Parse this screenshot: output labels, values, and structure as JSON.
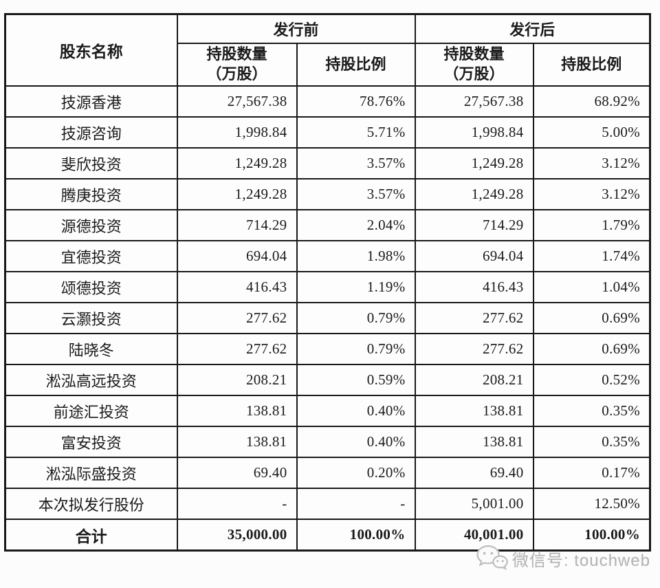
{
  "table": {
    "headers": {
      "shareholder": "股东名称",
      "pre_issue": "发行前",
      "post_issue": "发行后",
      "qty_line1": "持股数量",
      "qty_line2": "（万股）",
      "pct": "持股比例"
    },
    "rows": [
      {
        "name": "技源香港",
        "pre_qty": "27,567.38",
        "pre_pct": "78.76%",
        "post_qty": "27,567.38",
        "post_pct": "68.92%"
      },
      {
        "name": "技源咨询",
        "pre_qty": "1,998.84",
        "pre_pct": "5.71%",
        "post_qty": "1,998.84",
        "post_pct": "5.00%"
      },
      {
        "name": "斐欣投资",
        "pre_qty": "1,249.28",
        "pre_pct": "3.57%",
        "post_qty": "1,249.28",
        "post_pct": "3.12%"
      },
      {
        "name": "腾庚投资",
        "pre_qty": "1,249.28",
        "pre_pct": "3.57%",
        "post_qty": "1,249.28",
        "post_pct": "3.12%"
      },
      {
        "name": "源德投资",
        "pre_qty": "714.29",
        "pre_pct": "2.04%",
        "post_qty": "714.29",
        "post_pct": "1.79%"
      },
      {
        "name": "宜德投资",
        "pre_qty": "694.04",
        "pre_pct": "1.98%",
        "post_qty": "694.04",
        "post_pct": "1.74%"
      },
      {
        "name": "颂德投资",
        "pre_qty": "416.43",
        "pre_pct": "1.19%",
        "post_qty": "416.43",
        "post_pct": "1.04%"
      },
      {
        "name": "云灏投资",
        "pre_qty": "277.62",
        "pre_pct": "0.79%",
        "post_qty": "277.62",
        "post_pct": "0.69%"
      },
      {
        "name": "陆晓冬",
        "pre_qty": "277.62",
        "pre_pct": "0.79%",
        "post_qty": "277.62",
        "post_pct": "0.69%"
      },
      {
        "name": "淞泓高远投资",
        "pre_qty": "208.21",
        "pre_pct": "0.59%",
        "post_qty": "208.21",
        "post_pct": "0.52%"
      },
      {
        "name": "前途汇投资",
        "pre_qty": "138.81",
        "pre_pct": "0.40%",
        "post_qty": "138.81",
        "post_pct": "0.35%"
      },
      {
        "name": "富安投资",
        "pre_qty": "138.81",
        "pre_pct": "0.40%",
        "post_qty": "138.81",
        "post_pct": "0.35%"
      },
      {
        "name": "淞泓际盛投资",
        "pre_qty": "69.40",
        "pre_pct": "0.20%",
        "post_qty": "69.40",
        "post_pct": "0.17%"
      },
      {
        "name": "本次拟发行股份",
        "pre_qty": "-",
        "pre_pct": "-",
        "post_qty": "5,001.00",
        "post_pct": "12.50%"
      }
    ],
    "total": {
      "name": "合计",
      "pre_qty": "35,000.00",
      "pre_pct": "100.00%",
      "post_qty": "40,001.00",
      "post_pct": "100.00%"
    }
  },
  "watermark": {
    "icon": "wechat-icon",
    "label": "微信号: touchweb"
  }
}
